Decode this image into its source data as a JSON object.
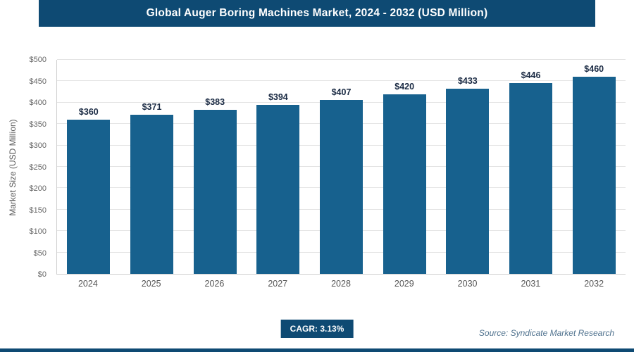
{
  "header": {
    "title": "Global Auger Boring Machines Market, 2024 - 2032 (USD Million)"
  },
  "chart_data": {
    "type": "bar",
    "categories": [
      "2024",
      "2025",
      "2026",
      "2027",
      "2028",
      "2029",
      "2030",
      "2031",
      "2032"
    ],
    "values": [
      360,
      371,
      383,
      394,
      407,
      420,
      433,
      446,
      460
    ],
    "value_labels": [
      "$360",
      "$371",
      "$383",
      "$394",
      "$407",
      "$420",
      "$433",
      "$446",
      "$460"
    ],
    "title": "Global Auger Boring Machines Market, 2024 - 2032 (USD Million)",
    "xlabel": "",
    "ylabel": "Market Size (USD Million)",
    "ylim": [
      0,
      500
    ],
    "ytick_step": 50,
    "ytick_labels": [
      "$0",
      "$50",
      "$100",
      "$150",
      "$200",
      "$250",
      "$300",
      "$350",
      "$400",
      "$450",
      "$500"
    ],
    "grid": true,
    "legend": "none"
  },
  "footer": {
    "cagr_label": "CAGR: 3.13%",
    "source": "Source: Syndicate Market Research"
  },
  "colors": {
    "header_bg": "#0e4a73",
    "bar": "#17618e",
    "badge_bg": "#0e4a73",
    "bottom_strip": "#0e4a73",
    "value_label": "#1b2b44",
    "gridline": "#e4e4e4"
  }
}
